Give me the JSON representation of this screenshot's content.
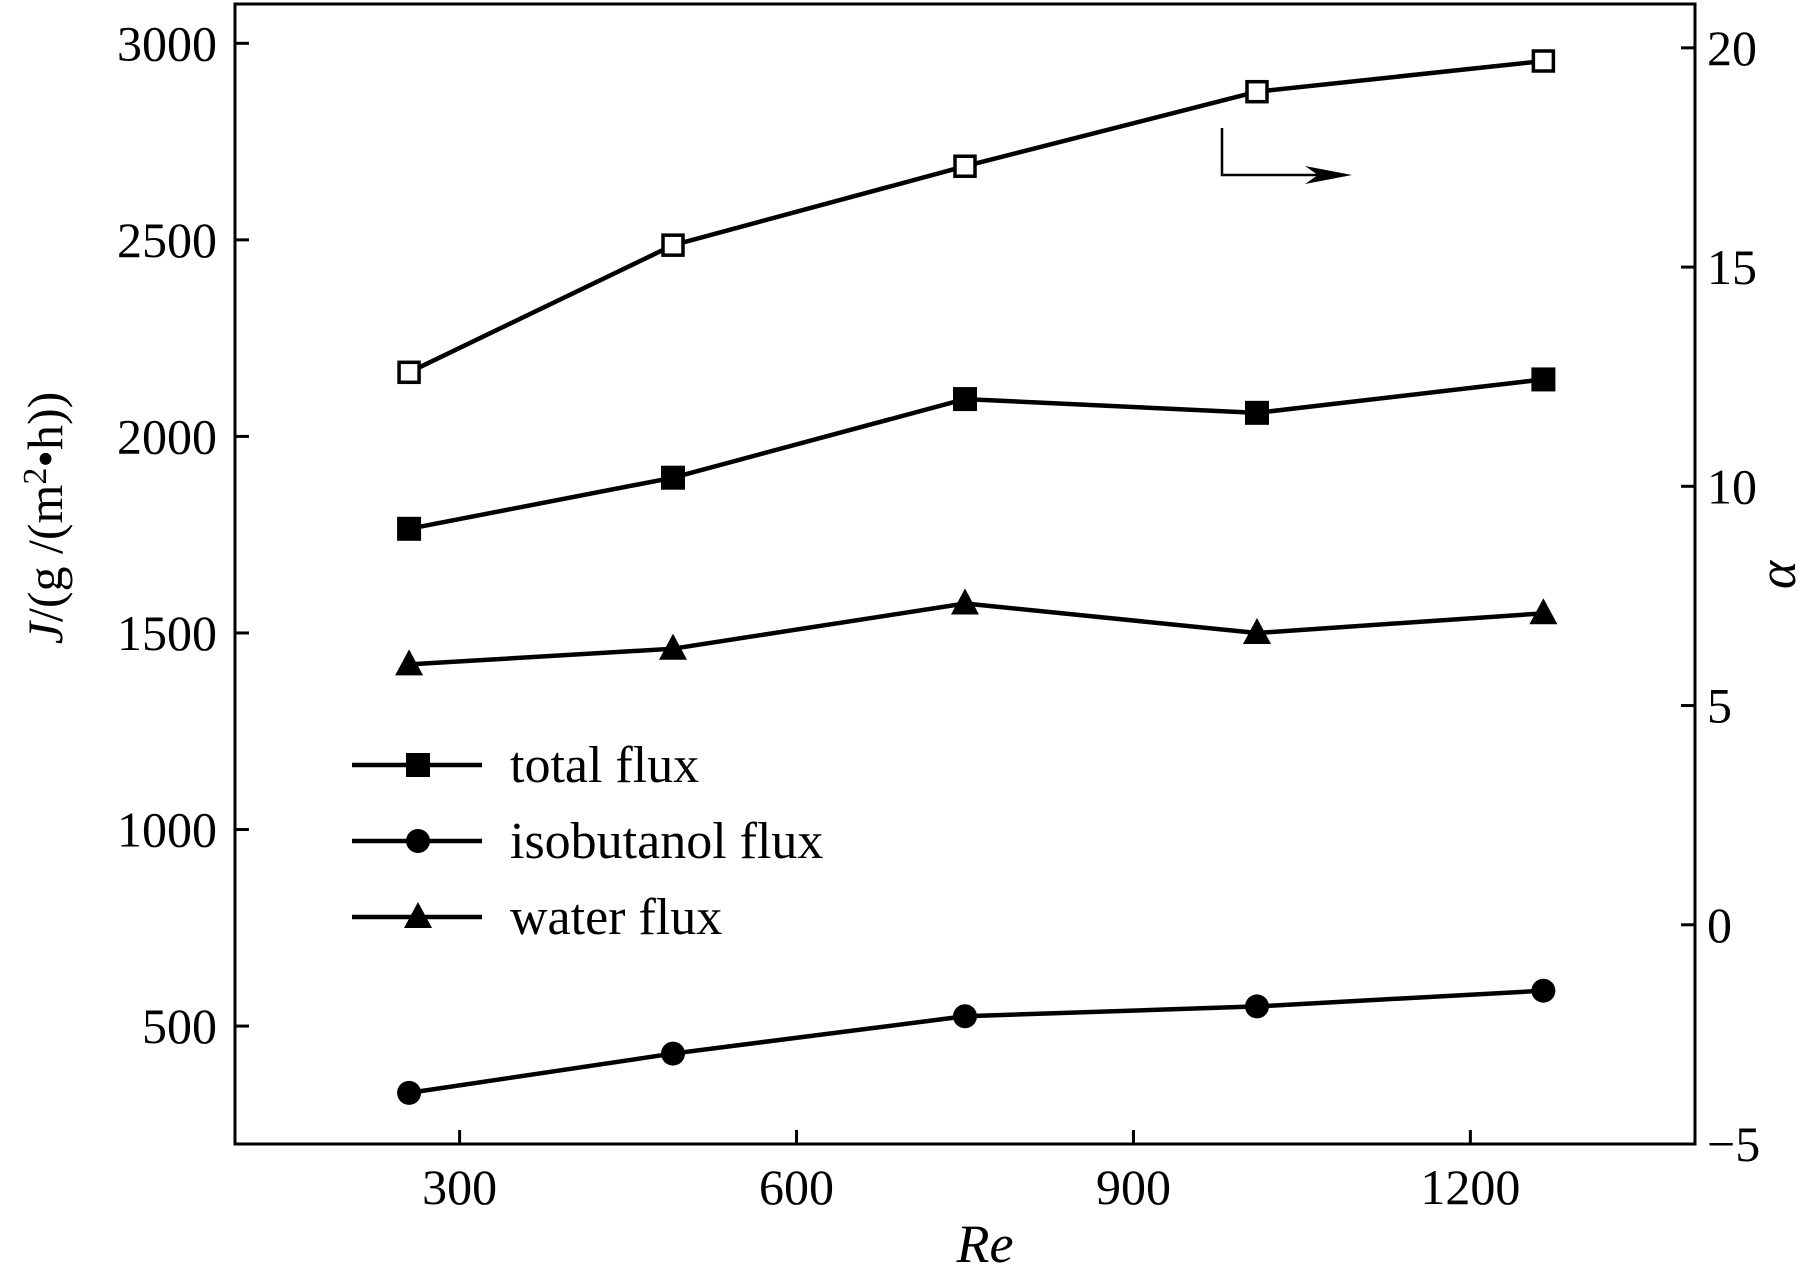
{
  "chart_data": {
    "type": "line",
    "title": "",
    "xlabel": "Re",
    "ylabel_left": {
      "prefix": "J",
      "unit": "/(g /(m",
      "sup": "2",
      "unit_end": "•h))"
    },
    "ylabel_right": "α",
    "xlim": [
      100,
      1400
    ],
    "ylim_left": [
      200,
      3100
    ],
    "ylim_right": [
      -5,
      21
    ],
    "x_ticks": [
      300,
      600,
      900,
      1200
    ],
    "y_left_ticks": [
      500,
      1000,
      1500,
      2000,
      2500,
      3000
    ],
    "y_right_ticks": [
      -5,
      0,
      5,
      10,
      15,
      20
    ],
    "x_tick_labels": [
      "300",
      "600",
      "900",
      "1200"
    ],
    "y_left_tick_labels": [
      "500",
      "1000",
      "1500",
      "2000",
      "2500",
      "3000"
    ],
    "y_right_tick_labels": [
      "−5",
      "0",
      "5",
      "10",
      "15",
      "20"
    ],
    "grid": false,
    "legend_position": "lower-left",
    "series": [
      {
        "name": "total flux",
        "marker": "filled-square",
        "axis": "left",
        "x": [
          255,
          490,
          750,
          1010,
          1265
        ],
        "y": [
          1765,
          1895,
          2095,
          2060,
          2145
        ]
      },
      {
        "name": "isobutanol flux",
        "marker": "filled-circle",
        "axis": "left",
        "x": [
          255,
          490,
          750,
          1010,
          1265
        ],
        "y": [
          330,
          430,
          525,
          550,
          590
        ]
      },
      {
        "name": "water flux",
        "marker": "filled-triangle",
        "axis": "left",
        "x": [
          255,
          490,
          750,
          1010,
          1265
        ],
        "y": [
          1420,
          1460,
          1575,
          1500,
          1550
        ]
      },
      {
        "marker": "open-square",
        "axis": "right",
        "x": [
          255,
          490,
          750,
          1010,
          1265
        ],
        "y": [
          12.6,
          15.5,
          17.3,
          19.0,
          19.7
        ]
      }
    ]
  }
}
